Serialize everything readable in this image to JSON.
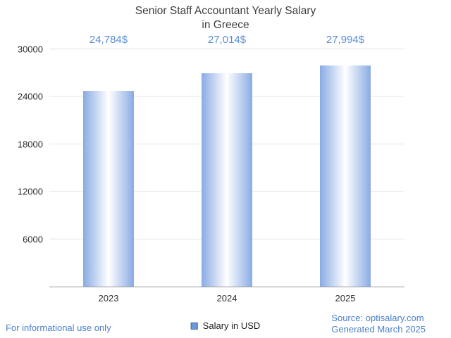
{
  "chart_data": {
    "type": "bar",
    "title": "Senior Staff Accountant Yearly Salary in Greece",
    "title_lines": [
      "Senior Staff Accountant Yearly Salary",
      "in Greece"
    ],
    "categories": [
      "2023",
      "2024",
      "2025"
    ],
    "values": [
      24784,
      27014,
      27994
    ],
    "value_labels": [
      "24,784$",
      "27,014$",
      "27,994$"
    ],
    "xlabel": "",
    "ylabel": "",
    "ylim": [
      0,
      30000
    ],
    "yticks": [
      6000,
      12000,
      18000,
      24000,
      30000
    ],
    "grid": true,
    "legend": "Salary in USD",
    "legend_position": "bottom",
    "bar_edge_color": "#8aabe4",
    "bar_center_color": "#ffffff",
    "value_label_color": "#5b8fd9"
  },
  "footer": {
    "disclaimer": "For informational use only",
    "source": "Source: optisalary.com",
    "generated": "Generated March 2025"
  },
  "colors": {
    "text_blue": "#4b80cc",
    "axis_gray": "#999999",
    "gridline_gray": "#e3e3e3",
    "title_color": "#3f3f3f"
  }
}
